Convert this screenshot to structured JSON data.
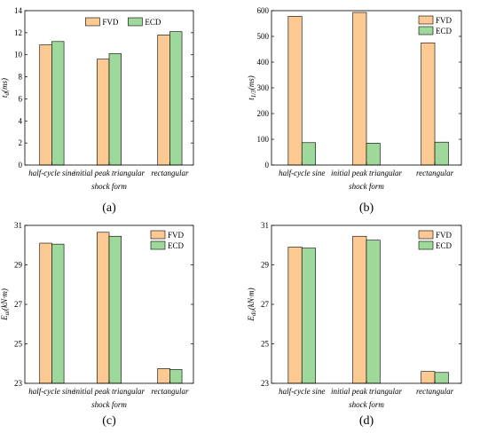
{
  "colors": {
    "fvd": "#FCC992",
    "ecd": "#9ED89B"
  },
  "chart_data": [
    {
      "type": "bar",
      "caption": "(a)",
      "ylabel": "t_d(ms)",
      "xlabel": "shock form",
      "categories": [
        "half-cycle sine",
        "initial peak triangular",
        "rectangular"
      ],
      "ylim": [
        0,
        14
      ],
      "yticks": [
        "0",
        "2",
        "4",
        "6",
        "8",
        "10",
        "12",
        "14"
      ],
      "legend_position": "top-center",
      "series": [
        {
          "name": "FVD",
          "values": [
            10.9,
            9.6,
            11.8
          ]
        },
        {
          "name": "ECD",
          "values": [
            11.2,
            10.1,
            12.1
          ]
        }
      ]
    },
    {
      "type": "bar",
      "caption": "(b)",
      "ylabel": "t_1/3(ms)",
      "xlabel": "shock form",
      "categories": [
        "half-cycle sine",
        "initial peak triangular",
        "rectangular"
      ],
      "ylim": [
        0,
        600
      ],
      "yticks": [
        "0",
        "100",
        "200",
        "300",
        "400",
        "500",
        "600"
      ],
      "legend_position": "top-right",
      "series": [
        {
          "name": "FVD",
          "values": [
            578,
            593,
            475
          ]
        },
        {
          "name": "ECD",
          "values": [
            87,
            85,
            89
          ]
        }
      ]
    },
    {
      "type": "bar",
      "caption": "(c)",
      "ylabel": "E_ai(kN·m)",
      "xlabel": "shock form",
      "categories": [
        "half-cycle sine",
        "initial peak triangular",
        "rectangular"
      ],
      "ylim": [
        23,
        31
      ],
      "yticks": [
        "23",
        "25",
        "27",
        "29",
        "31"
      ],
      "legend_position": "top-right",
      "series": [
        {
          "name": "FVD",
          "values": [
            30.1,
            30.65,
            23.75
          ]
        },
        {
          "name": "ECD",
          "values": [
            30.05,
            30.45,
            23.7
          ]
        }
      ]
    },
    {
      "type": "bar",
      "caption": "(d)",
      "ylabel": "E_do(kN·m)",
      "xlabel": "shock form",
      "categories": [
        "half-cycle sine",
        "initial peak triangular",
        "rectangular"
      ],
      "ylim": [
        23,
        31
      ],
      "yticks": [
        "23",
        "25",
        "27",
        "29",
        "31"
      ],
      "legend_position": "top-right",
      "series": [
        {
          "name": "FVD",
          "values": [
            29.9,
            30.45,
            23.6
          ]
        },
        {
          "name": "ECD",
          "values": [
            29.85,
            30.25,
            23.55
          ]
        }
      ]
    }
  ]
}
